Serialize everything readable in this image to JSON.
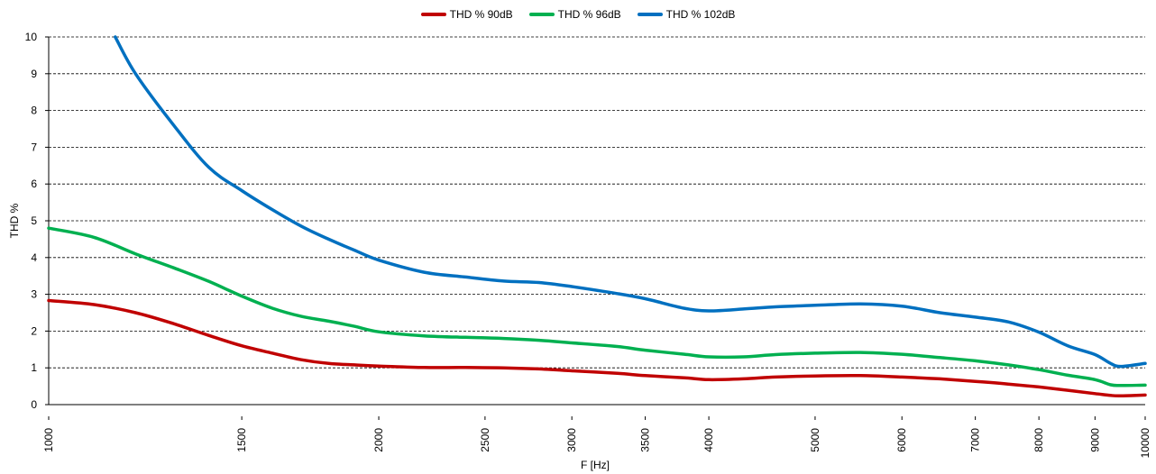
{
  "chart_data": {
    "type": "line",
    "xlabel": "F [Hz]",
    "ylabel": "THD  %",
    "xscale": "log",
    "xlim": [
      1000,
      10000
    ],
    "ylim": [
      0,
      10
    ],
    "yticks": [
      0,
      1,
      2,
      3,
      4,
      5,
      6,
      7,
      8,
      9,
      10
    ],
    "xticks": [
      1000,
      1500,
      2000,
      2500,
      3000,
      3500,
      4000,
      5000,
      6000,
      7000,
      8000,
      9000,
      10000
    ],
    "grid": "horizontal",
    "legend": "top-center",
    "series": [
      {
        "name": "THD % 90dB",
        "color": "#c00000",
        "x": [
          1000,
          1100,
          1200,
          1300,
          1400,
          1500,
          1600,
          1700,
          1800,
          1900,
          2000,
          2200,
          2400,
          2600,
          2800,
          3000,
          3300,
          3500,
          3800,
          4000,
          4300,
          4600,
          5000,
          5500,
          6000,
          6500,
          7000,
          7500,
          8000,
          8500,
          9000,
          9300,
          9500,
          10000
        ],
        "values": [
          2.83,
          2.72,
          2.5,
          2.2,
          1.88,
          1.6,
          1.4,
          1.22,
          1.12,
          1.08,
          1.05,
          1.01,
          1.01,
          1.0,
          0.97,
          0.92,
          0.85,
          0.79,
          0.73,
          0.68,
          0.7,
          0.75,
          0.78,
          0.79,
          0.75,
          0.7,
          0.63,
          0.56,
          0.48,
          0.39,
          0.3,
          0.25,
          0.24,
          0.26
        ]
      },
      {
        "name": "THD % 96dB",
        "color": "#00b050",
        "x": [
          1000,
          1100,
          1200,
          1300,
          1400,
          1500,
          1600,
          1700,
          1800,
          1900,
          2000,
          2200,
          2400,
          2600,
          2800,
          3000,
          3300,
          3500,
          3800,
          4000,
          4300,
          4600,
          5000,
          5500,
          6000,
          6500,
          7000,
          7500,
          8000,
          8500,
          9000,
          9300,
          9500,
          10000
        ],
        "values": [
          4.8,
          4.55,
          4.1,
          3.72,
          3.35,
          2.95,
          2.62,
          2.4,
          2.27,
          2.13,
          1.98,
          1.87,
          1.83,
          1.8,
          1.75,
          1.68,
          1.58,
          1.48,
          1.37,
          1.3,
          1.3,
          1.36,
          1.4,
          1.42,
          1.37,
          1.28,
          1.19,
          1.08,
          0.95,
          0.8,
          0.68,
          0.54,
          0.52,
          0.53
        ]
      },
      {
        "name": "THD % 102dB",
        "color": "#0070c0",
        "x": [
          1150,
          1200,
          1300,
          1400,
          1500,
          1600,
          1700,
          1800,
          1900,
          2000,
          2200,
          2400,
          2600,
          2800,
          3000,
          3300,
          3500,
          3800,
          4000,
          4300,
          4600,
          5000,
          5500,
          6000,
          6500,
          7000,
          7500,
          8000,
          8500,
          9000,
          9300,
          9500,
          10000
        ],
        "values": [
          10.0,
          9.0,
          7.6,
          6.45,
          5.82,
          5.3,
          4.85,
          4.5,
          4.2,
          3.93,
          3.6,
          3.47,
          3.36,
          3.32,
          3.21,
          3.02,
          2.88,
          2.62,
          2.55,
          2.6,
          2.66,
          2.7,
          2.74,
          2.68,
          2.5,
          2.38,
          2.25,
          1.97,
          1.6,
          1.36,
          1.12,
          1.04,
          1.12
        ]
      }
    ]
  }
}
